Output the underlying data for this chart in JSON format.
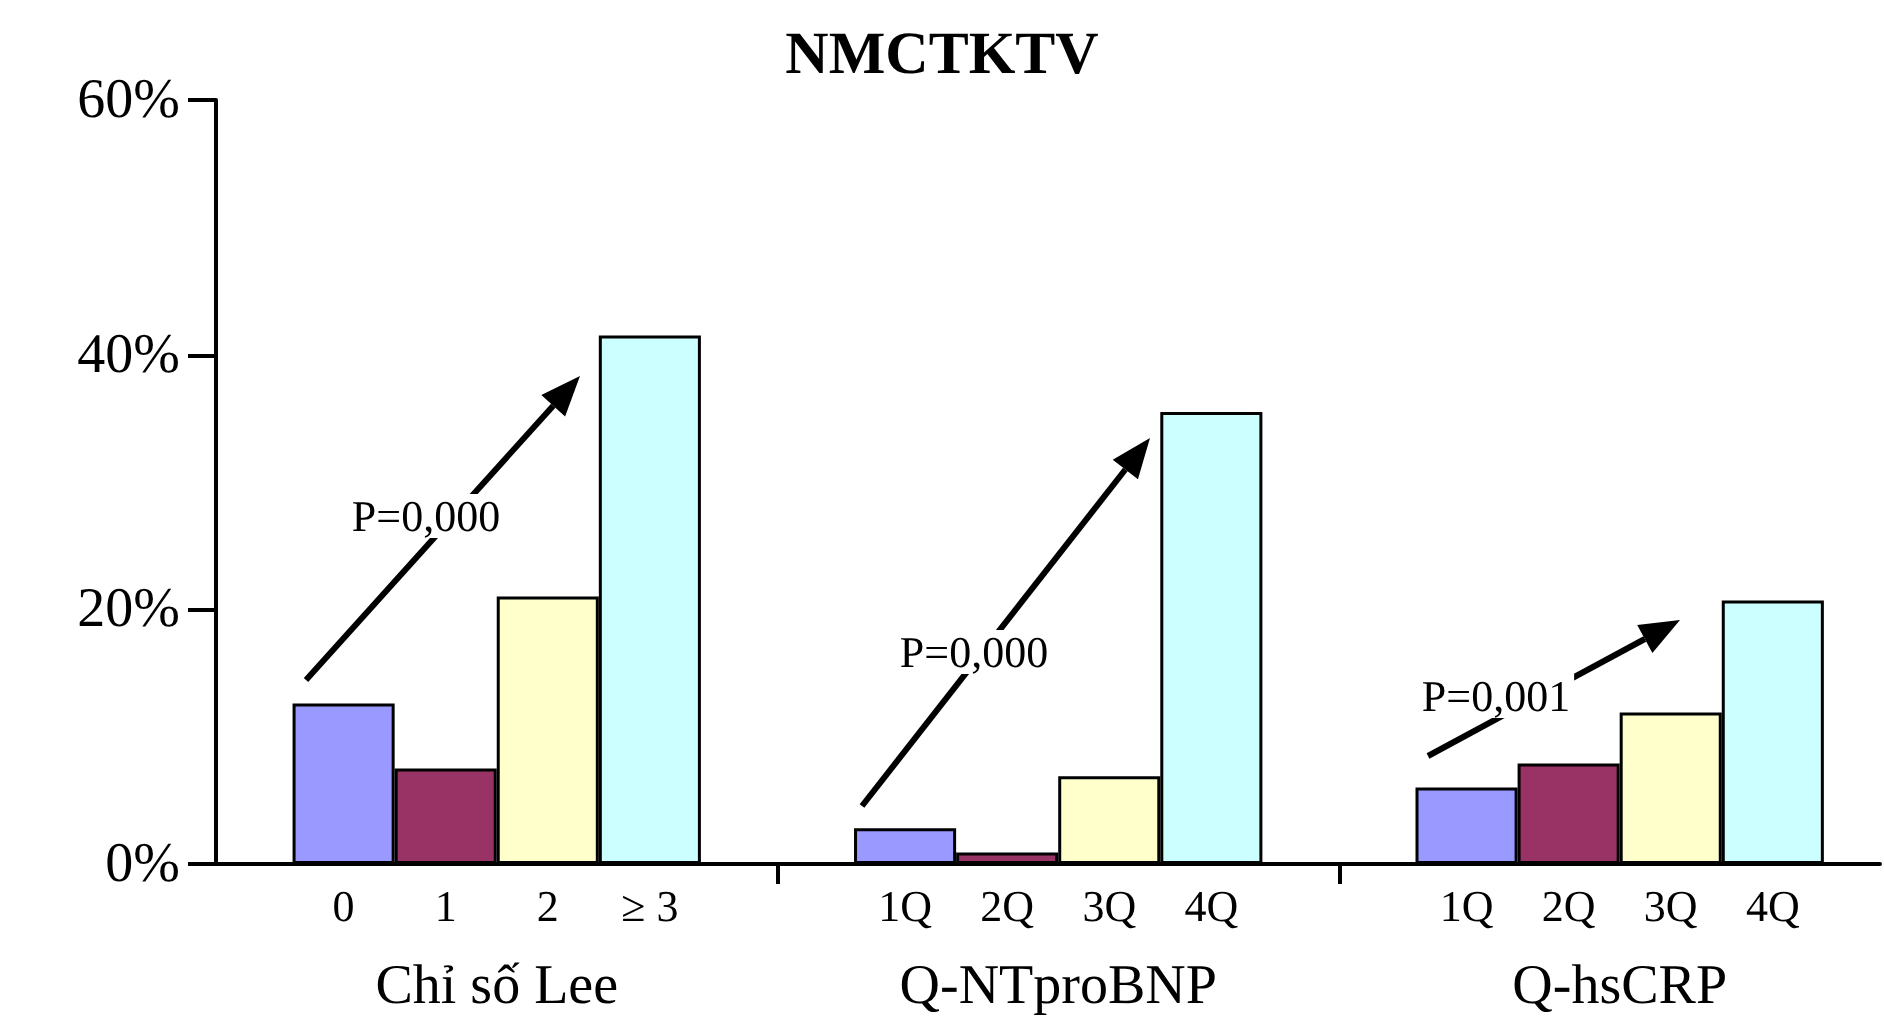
{
  "chart_data": {
    "type": "bar",
    "title": "NMCTKTV",
    "categories": [
      "0",
      "1",
      "2",
      "≥ 3",
      "1Q",
      "2Q",
      "3Q",
      "4Q",
      "1Q",
      "2Q",
      "3Q",
      "4Q"
    ],
    "values": [
      12.6,
      7.5,
      21.0,
      41.5,
      2.8,
      0.9,
      6.9,
      35.5,
      6.0,
      7.9,
      11.9,
      20.7
    ],
    "colors": [
      "#9999ff",
      "#993366",
      "#ffffcc",
      "#ccffff",
      "#9999ff",
      "#993366",
      "#ffffcc",
      "#ccffff",
      "#9999ff",
      "#993366",
      "#ffffcc",
      "#ccffff"
    ],
    "ylim": [
      0,
      60
    ],
    "yticks": [
      {
        "value": 0,
        "label": "0%"
      },
      {
        "value": 20,
        "label": "20%"
      },
      {
        "value": 40,
        "label": "40%"
      },
      {
        "value": 60,
        "label": "60%"
      }
    ],
    "grid": false,
    "annotations": [
      "Chỉ số Lee",
      "P=0,000",
      "Q-NTproBNP",
      "P=0,000",
      "Q-hsCRP",
      "P=0,001"
    ]
  }
}
